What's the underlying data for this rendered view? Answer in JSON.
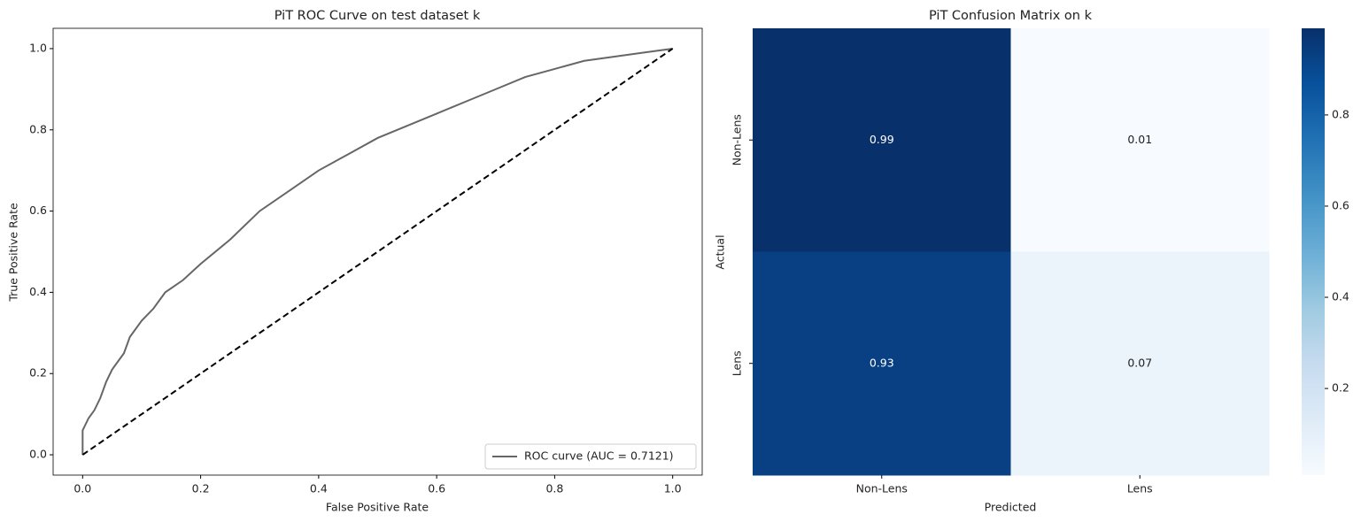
{
  "chart_data": [
    {
      "type": "line",
      "title": "PiT ROC Curve on test dataset k",
      "xlabel": "False Positive Rate",
      "ylabel": "True Positive Rate",
      "xlim": [
        -0.05,
        1.05
      ],
      "ylim": [
        -0.05,
        1.05
      ],
      "xticks": [
        {
          "value": 0,
          "label": "0.0"
        },
        0.2,
        0.4,
        0.6,
        0.8,
        {
          "value": 1,
          "label": "1.0"
        }
      ],
      "yticks": [
        {
          "value": 0,
          "label": "0.0"
        },
        0.2,
        0.4,
        0.6,
        0.8,
        {
          "value": 1,
          "label": "1.0"
        }
      ],
      "legend": "lower right",
      "series": [
        {
          "name": "ROC curve (AUC = 0.7121)",
          "color": "#666666",
          "x": [
            0,
            0,
            0.01,
            0.02,
            0.03,
            0.04,
            0.05,
            0.07,
            0.08,
            0.1,
            0.12,
            0.14,
            0.17,
            0.2,
            0.25,
            0.3,
            0.35,
            0.4,
            0.45,
            0.5,
            0.55,
            0.6,
            0.65,
            0.7,
            0.75,
            0.8,
            0.85,
            0.9,
            0.95,
            1
          ],
          "values": [
            0,
            0.06,
            0.09,
            0.11,
            0.14,
            0.18,
            0.21,
            0.25,
            0.29,
            0.33,
            0.36,
            0.4,
            0.43,
            0.47,
            0.53,
            0.6,
            0.65,
            0.7,
            0.74,
            0.78,
            0.81,
            0.84,
            0.87,
            0.9,
            0.93,
            0.95,
            0.97,
            0.98,
            0.99,
            1
          ]
        },
        {
          "color": "#000000",
          "dashed": true,
          "x": [
            0,
            1
          ],
          "values": [
            0,
            1
          ]
        }
      ]
    },
    {
      "type": "heatmap",
      "title": "PiT Confusion Matrix on k",
      "xlabel": "Predicted",
      "ylabel": "Actual",
      "x_categories": [
        "Non-Lens",
        "Lens"
      ],
      "y_categories": [
        "Non-Lens",
        "Lens"
      ],
      "values": [
        [
          0.99,
          0.01
        ],
        [
          0.93,
          0.07
        ]
      ],
      "clim": [
        0.01,
        0.99
      ],
      "colorbar_ticks": [
        0.2,
        0.4,
        0.6,
        0.8
      ],
      "colorscale": [
        "#f7fbff",
        "#deebf7",
        "#c6dbef",
        "#9ecae1",
        "#6baed6",
        "#4292c6",
        "#2171b5",
        "#08519c",
        "#08306b"
      ]
    }
  ]
}
